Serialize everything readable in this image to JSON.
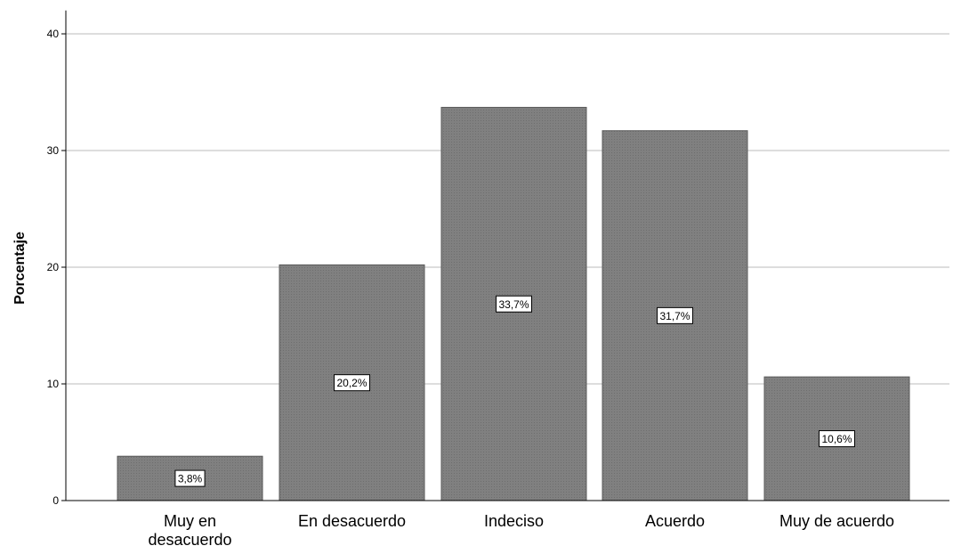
{
  "chart_data": {
    "type": "bar",
    "title": "",
    "xlabel": "",
    "ylabel": "Porcentaje",
    "categories": [
      [
        "Muy en",
        "desacuerdo"
      ],
      [
        "En desacuerdo"
      ],
      [
        "Indeciso"
      ],
      [
        "Acuerdo"
      ],
      [
        "Muy de acuerdo"
      ]
    ],
    "values": [
      3.8,
      20.2,
      33.7,
      31.7,
      10.6
    ],
    "data_labels": [
      "3,8%",
      "20,2%",
      "33,7%",
      "31,7%",
      "10,6%"
    ],
    "ylim": [
      0,
      42
    ],
    "yticks": [
      0,
      10,
      20,
      30,
      40
    ],
    "ytick_labels": [
      "0",
      "10",
      "20",
      "30",
      "40"
    ],
    "grid": "horizontal",
    "legend": "none"
  },
  "colors": {
    "bar_fill": "#808080",
    "bar_hatch": "#6e6e6e",
    "bar_edge": "#5a5a5a",
    "grid_line": "#d2d2d2",
    "axis_line": "#000000",
    "background": "#ffffff"
  }
}
